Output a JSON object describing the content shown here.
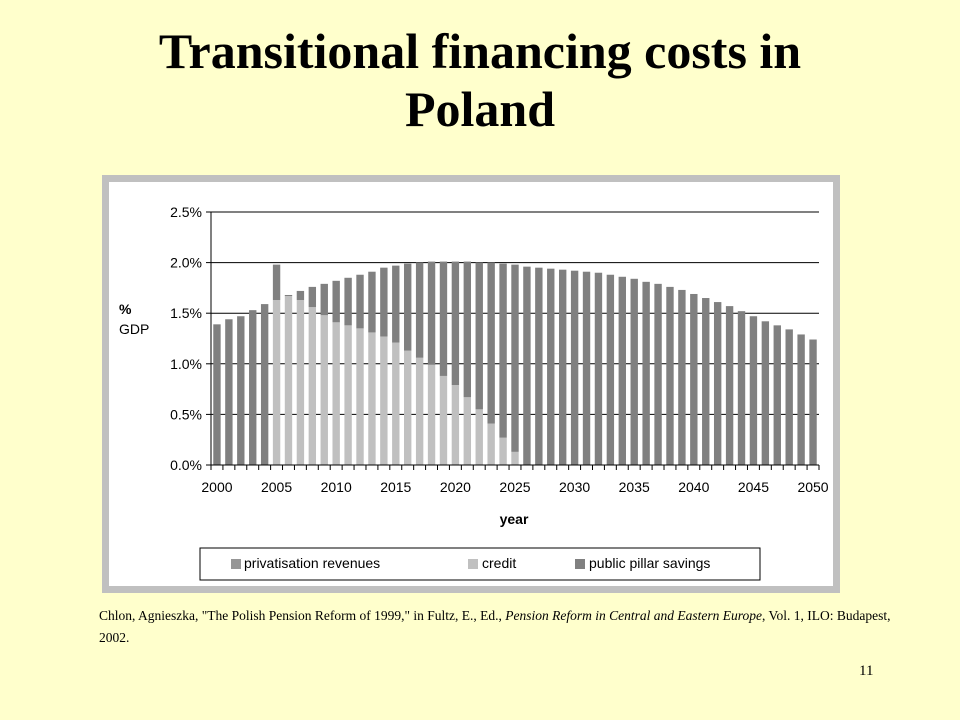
{
  "slide": {
    "title_line1": "Transitional financing costs in",
    "title_line2": "Poland",
    "page_number": "11"
  },
  "citation": {
    "part1": "Chlon, Agnieszka, \"The Polish Pension Reform of 1999,\" in Fultz, E., Ed., ",
    "italic": "Pension Reform in Central and Eastern Europe",
    "part2": ", Vol. 1, ILO: Budapest, 2002."
  },
  "colors": {
    "background": "#ffffcc",
    "chart_frame": "#c0c0c0",
    "plot_area": "#ffffff",
    "privatisation_revenues": "#969696",
    "credit": "#c0c0c0",
    "public_pillar_savings": "#808080"
  },
  "chart_data": {
    "type": "bar",
    "stacked": true,
    "title": "",
    "xlabel": "year",
    "ylabel": "% GDP",
    "ylabel_lines": [
      "%",
      "GDP"
    ],
    "ylim": [
      0,
      0.025
    ],
    "y_ticks": [
      "0.0%",
      "0.5%",
      "1.0%",
      "1.5%",
      "2.0%",
      "2.5%"
    ],
    "x_ticks": [
      "2000",
      "2005",
      "2010",
      "2015",
      "2020",
      "2025",
      "2030",
      "2035",
      "2040",
      "2045",
      "2050"
    ],
    "grid": true,
    "legend": "bottom",
    "categories": [
      2000,
      2001,
      2002,
      2003,
      2004,
      2005,
      2006,
      2007,
      2008,
      2009,
      2010,
      2011,
      2012,
      2013,
      2014,
      2015,
      2016,
      2017,
      2018,
      2019,
      2020,
      2021,
      2022,
      2023,
      2024,
      2025,
      2026,
      2027,
      2028,
      2029,
      2030,
      2031,
      2032,
      2033,
      2034,
      2035,
      2036,
      2037,
      2038,
      2039,
      2040,
      2041,
      2042,
      2043,
      2044,
      2045,
      2046,
      2047,
      2048,
      2049,
      2050
    ],
    "series": [
      {
        "name": "privatisation revenues",
        "values": [
          0,
          0,
          0,
          0,
          0,
          0,
          0,
          0,
          0,
          0,
          0,
          0,
          0,
          0,
          0,
          0,
          0,
          0,
          0,
          0,
          0,
          0,
          0,
          0,
          0,
          0,
          0,
          0,
          0,
          0,
          0,
          0,
          0,
          0,
          0,
          0,
          0,
          0,
          0,
          0,
          0,
          0,
          0,
          0,
          0,
          0,
          0,
          0,
          0,
          0,
          0
        ]
      },
      {
        "name": "credit",
        "values": [
          0,
          0,
          0,
          0,
          0,
          0.0163,
          0.0167,
          0.0163,
          0.0156,
          0.0148,
          0.0141,
          0.0138,
          0.0135,
          0.0131,
          0.0127,
          0.0121,
          0.0113,
          0.0106,
          0.0099,
          0.0088,
          0.0079,
          0.0067,
          0.0055,
          0.0041,
          0.0027,
          0.0013,
          0,
          0,
          0,
          0,
          0,
          0,
          0,
          0,
          0,
          0,
          0,
          0,
          0,
          0,
          0,
          0,
          0,
          0,
          0,
          0,
          0,
          0,
          0,
          0,
          0
        ]
      },
      {
        "name": "public pillar savings",
        "values": [
          0.0139,
          0.0144,
          0.0147,
          0.0153,
          0.0159,
          0.0035,
          0.0001,
          0.0009,
          0.002,
          0.0031,
          0.0041,
          0.0047,
          0.0053,
          0.006,
          0.0068,
          0.0076,
          0.0086,
          0.0094,
          0.0102,
          0.0113,
          0.0122,
          0.0134,
          0.0145,
          0.0159,
          0.0172,
          0.0185,
          0.0196,
          0.0195,
          0.0194,
          0.0193,
          0.0192,
          0.0191,
          0.019,
          0.0188,
          0.0186,
          0.0184,
          0.0181,
          0.0179,
          0.0176,
          0.0173,
          0.0169,
          0.0165,
          0.0161,
          0.0157,
          0.0152,
          0.0147,
          0.0142,
          0.0138,
          0.0134,
          0.0129,
          0.0124
        ]
      }
    ]
  }
}
